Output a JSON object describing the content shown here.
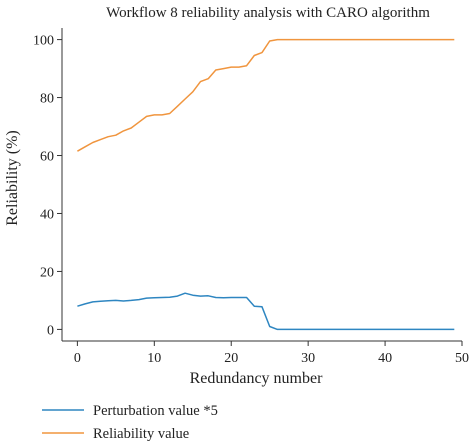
{
  "chart_data": {
    "type": "line",
    "title": "Workflow 8 reliability analysis with CARO algorithm",
    "xlabel": "Redundancy number",
    "ylabel": "Reliability (%)",
    "xlim": [
      -2,
      50
    ],
    "ylim": [
      -4,
      104
    ],
    "xticks": [
      0,
      10,
      20,
      30,
      40,
      50
    ],
    "yticks": [
      0,
      20,
      40,
      60,
      80,
      100
    ],
    "grid": false,
    "legend_position": "bottom",
    "series": [
      {
        "name": "Perturbation value *5",
        "color": "#2e86c1",
        "x": [
          0,
          1,
          2,
          3,
          4,
          5,
          6,
          7,
          8,
          9,
          10,
          11,
          12,
          13,
          14,
          15,
          16,
          17,
          18,
          19,
          20,
          21,
          22,
          23,
          24,
          25,
          26,
          27,
          28,
          29,
          30,
          31,
          32,
          33,
          34,
          35,
          36,
          37,
          38,
          39,
          40,
          41,
          42,
          43,
          44,
          45,
          46,
          47,
          48,
          49
        ],
        "y": [
          8,
          8.8,
          9.5,
          9.7,
          9.9,
          10,
          9.8,
          10,
          10.3,
          10.8,
          10.9,
          11,
          11.1,
          11.5,
          12.5,
          11.8,
          11.5,
          11.6,
          11,
          10.9,
          11,
          11,
          11,
          8,
          7.8,
          1,
          0,
          0,
          0,
          0,
          0,
          0,
          0,
          0,
          0,
          0,
          0,
          0,
          0,
          0,
          0,
          0,
          0,
          0,
          0,
          0,
          0,
          0,
          0,
          0
        ]
      },
      {
        "name": "Reliability value",
        "color": "#f0953e",
        "x": [
          0,
          1,
          2,
          3,
          4,
          5,
          6,
          7,
          8,
          9,
          10,
          11,
          12,
          13,
          14,
          15,
          16,
          17,
          18,
          19,
          20,
          21,
          22,
          23,
          24,
          25,
          26,
          27,
          28,
          29,
          30,
          31,
          32,
          33,
          34,
          35,
          36,
          37,
          38,
          39,
          40,
          41,
          42,
          43,
          44,
          45,
          46,
          47,
          48,
          49
        ],
        "y": [
          61.5,
          63,
          64.5,
          65.5,
          66.5,
          67,
          68.5,
          69.5,
          71.5,
          73.5,
          74,
          74,
          74.5,
          77,
          79.5,
          82,
          85.5,
          86.5,
          89.5,
          90,
          90.5,
          90.5,
          91,
          94.5,
          95.5,
          99.5,
          100,
          100,
          100,
          100,
          100,
          100,
          100,
          100,
          100,
          100,
          100,
          100,
          100,
          100,
          100,
          100,
          100,
          100,
          100,
          100,
          100,
          100,
          100,
          100
        ]
      }
    ]
  }
}
